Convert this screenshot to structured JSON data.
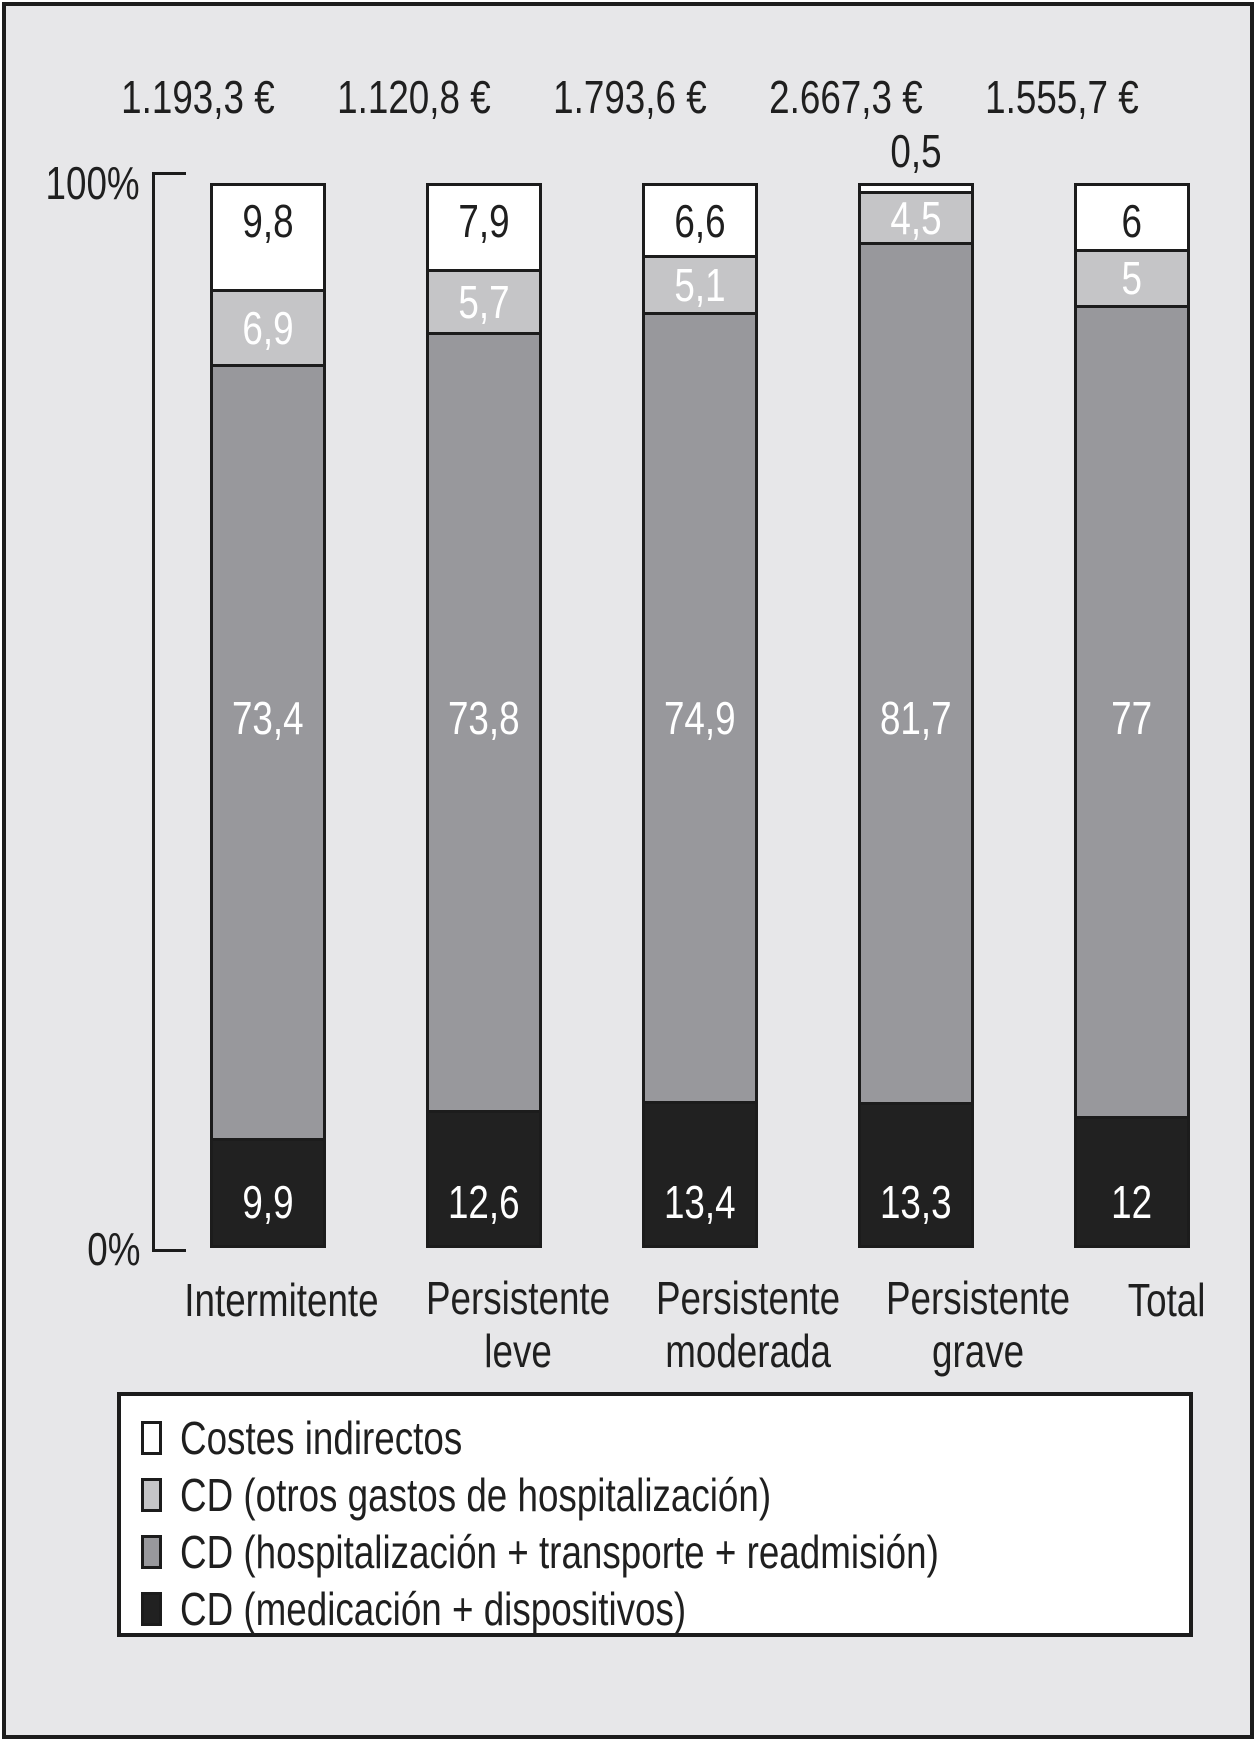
{
  "chart_data": {
    "type": "bar",
    "subtype": "stacked-100-percent",
    "orientation": "vertical",
    "plot_background": "#e7e7e9",
    "categories": [
      "Intermitente",
      "Persistente leve",
      "Persistente moderada",
      "Persistente grave",
      "Total"
    ],
    "column_totals": [
      "1.193,3 €",
      "1.120,8 €",
      "1.793,6 €",
      "2.667,3 €",
      "1.555,7 €"
    ],
    "series": [
      {
        "name": "Costes indirectos",
        "color": "#ffffff",
        "label_color": "#1f1f1f",
        "values": [
          9.8,
          7.9,
          6.6,
          0.5,
          6
        ]
      },
      {
        "name": "CD (otros gastos de hospitalización)",
        "color": "#c5c5c7",
        "label_color": "#ffffff",
        "values": [
          6.9,
          5.7,
          5.1,
          4.5,
          5
        ]
      },
      {
        "name": "CD (hospitalización + transporte + readmisión)",
        "color": "#98989c",
        "label_color": "#ffffff",
        "values": [
          73.4,
          73.8,
          74.9,
          81.7,
          77
        ]
      },
      {
        "name": "CD (medicación + dispositivos)",
        "color": "#212121",
        "label_color": "#ffffff",
        "values": [
          9.9,
          12.6,
          13.4,
          13.3,
          12
        ]
      }
    ],
    "ylim": [
      0,
      100
    ],
    "y_axis_labels": {
      "top": "100%",
      "bottom": "0%"
    },
    "decimal_separator": ",",
    "grid": false,
    "legend_position": "bottom"
  }
}
